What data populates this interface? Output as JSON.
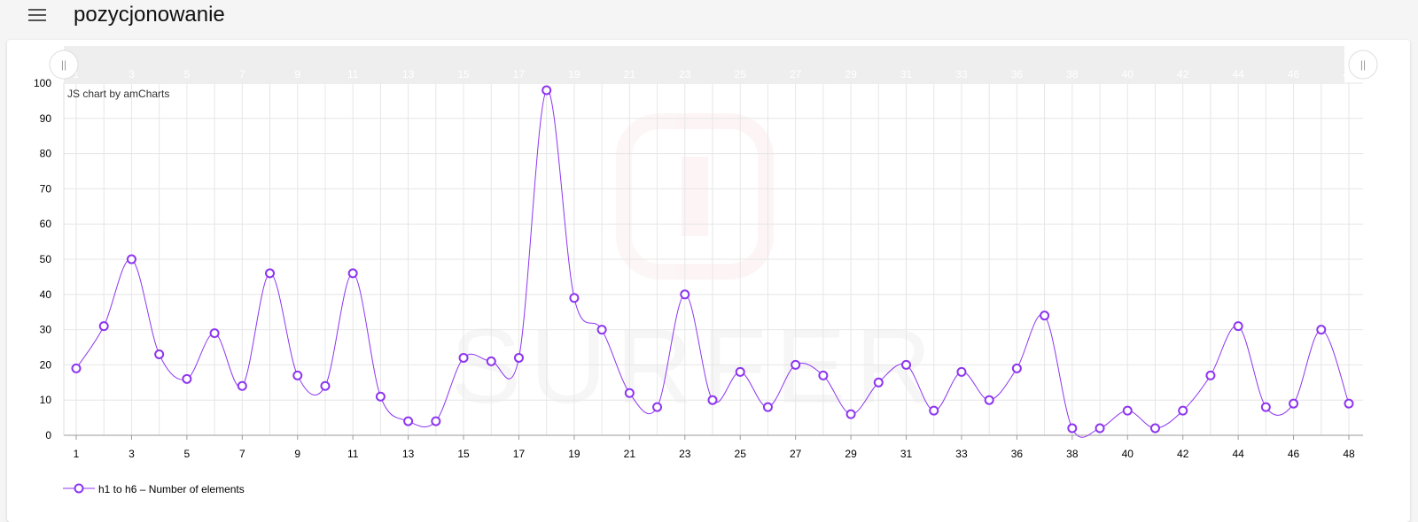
{
  "app": {
    "title": "pozycjonowanie",
    "menu_icon": "hamburger-menu-icon"
  },
  "chart": {
    "credit": "JS chart by amCharts",
    "watermark": "SURFER",
    "legend_label": "h1 to h6 – Number of elements",
    "scrollbar_left_grip": "||",
    "scrollbar_right_grip": "||"
  },
  "colors": {
    "series": "#8d35f0",
    "grid": "#e6e6e6",
    "scrollbar": "#eeeeee",
    "background": "#ffffff"
  },
  "chart_data": {
    "type": "line",
    "title": "",
    "xlabel": "",
    "ylabel": "",
    "ylim": [
      0,
      100
    ],
    "y_ticks": [
      0,
      10,
      20,
      30,
      40,
      50,
      60,
      70,
      80,
      90,
      100
    ],
    "x": [
      1,
      2,
      3,
      4,
      5,
      6,
      7,
      8,
      9,
      10,
      11,
      12,
      13,
      14,
      15,
      16,
      17,
      18,
      19,
      20,
      21,
      22,
      23,
      24,
      25,
      26,
      27,
      28,
      29,
      30,
      31,
      32,
      33,
      34,
      36,
      37,
      38,
      39,
      40,
      41,
      42,
      43,
      44,
      45,
      46,
      47,
      48
    ],
    "x_tick_labels": [
      "1",
      "3",
      "5",
      "7",
      "9",
      "11",
      "13",
      "15",
      "17",
      "19",
      "21",
      "23",
      "25",
      "27",
      "29",
      "31",
      "33",
      "36",
      "38",
      "40",
      "42",
      "44",
      "46",
      "48"
    ],
    "scrollbar_labels": [
      "1",
      "3",
      "5",
      "7",
      "9",
      "11",
      "13",
      "15",
      "17",
      "19",
      "21",
      "23",
      "25",
      "27",
      "29",
      "31",
      "33",
      "36",
      "38",
      "40",
      "42",
      "44",
      "46",
      "48"
    ],
    "grid": true,
    "legend_position": "bottom-left",
    "series": [
      {
        "name": "h1 to h6 – Number of elements",
        "values": [
          19,
          31,
          50,
          23,
          16,
          29,
          14,
          46,
          17,
          14,
          46,
          11,
          4,
          4,
          22,
          21,
          22,
          98,
          39,
          30,
          12,
          8,
          40,
          10,
          18,
          8,
          20,
          17,
          6,
          15,
          20,
          7,
          18,
          10,
          19,
          34,
          2,
          2,
          7,
          2,
          7,
          17,
          31,
          8,
          9,
          30,
          9
        ]
      }
    ]
  }
}
